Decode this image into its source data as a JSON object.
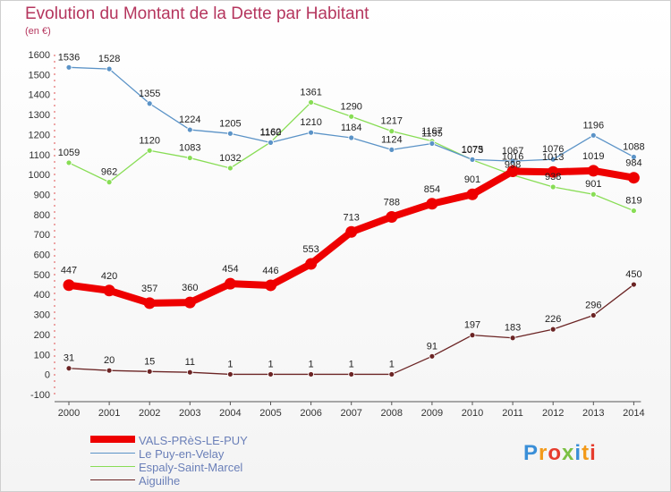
{
  "title": "Evolution du Montant de la Dette par Habitant",
  "unit": "(en €)",
  "logo": "Proxiti",
  "chart_data": {
    "type": "line",
    "x": [
      "2000",
      "2001",
      "2002",
      "2003",
      "2004",
      "2005",
      "2006",
      "2007",
      "2008",
      "2009",
      "2010",
      "2011",
      "2012",
      "2013",
      "2014"
    ],
    "ylim": [
      -100,
      1600
    ],
    "yticks": [
      -100,
      0,
      100,
      200,
      300,
      400,
      500,
      600,
      700,
      800,
      900,
      1000,
      1100,
      1200,
      1300,
      1400,
      1500,
      1600
    ],
    "grid": false,
    "legend_placement": "bottom-left",
    "series": [
      {
        "name": "VALS-PRèS-LE-PUY",
        "color": "#ee0000",
        "values": [
          447,
          420,
          357,
          360,
          454,
          446,
          553,
          713,
          788,
          854,
          901,
          1016,
          1013,
          1019,
          984
        ],
        "labels": [
          "447",
          "420",
          "357",
          "360",
          "454",
          "446",
          "553",
          "713",
          "788",
          "854",
          "901",
          "1016",
          "1013",
          "1019",
          "984"
        ]
      },
      {
        "name": "Le Puy-en-Velay",
        "color": "#5b93c7",
        "values": [
          1536,
          1528,
          1355,
          1224,
          1205,
          1160,
          1210,
          1184,
          1124,
          1155,
          1075,
          1067,
          1076,
          1196,
          1088
        ],
        "labels": [
          "1536",
          "1528",
          "1355",
          "1224",
          "1205",
          "1160",
          "1210",
          "1184",
          "1124",
          "1155",
          "1075",
          "1067",
          "1076",
          "1196",
          "1088"
        ]
      },
      {
        "name": "Espaly-Saint-Marcel",
        "color": "#88dd55",
        "values": [
          1059,
          962,
          1120,
          1083,
          1032,
          1162,
          1361,
          1290,
          1217,
          1167,
          1073,
          998,
          938,
          901,
          819
        ],
        "labels": [
          "1059",
          "962",
          "1120",
          "1083",
          "1032",
          "1162",
          "1361",
          "1290",
          "1217",
          "1167",
          "1073",
          "998",
          "938",
          "901",
          "819"
        ]
      },
      {
        "name": "Aiguilhe",
        "color": "#6b2424",
        "values": [
          31,
          20,
          15,
          11,
          1,
          1,
          1,
          1,
          1,
          91,
          197,
          183,
          226,
          296,
          450
        ],
        "labels": [
          "31",
          "20",
          "15",
          "11",
          "1",
          "1",
          "1",
          "1",
          "1",
          "91",
          "197",
          "183",
          "226",
          "296",
          "450"
        ]
      }
    ]
  }
}
